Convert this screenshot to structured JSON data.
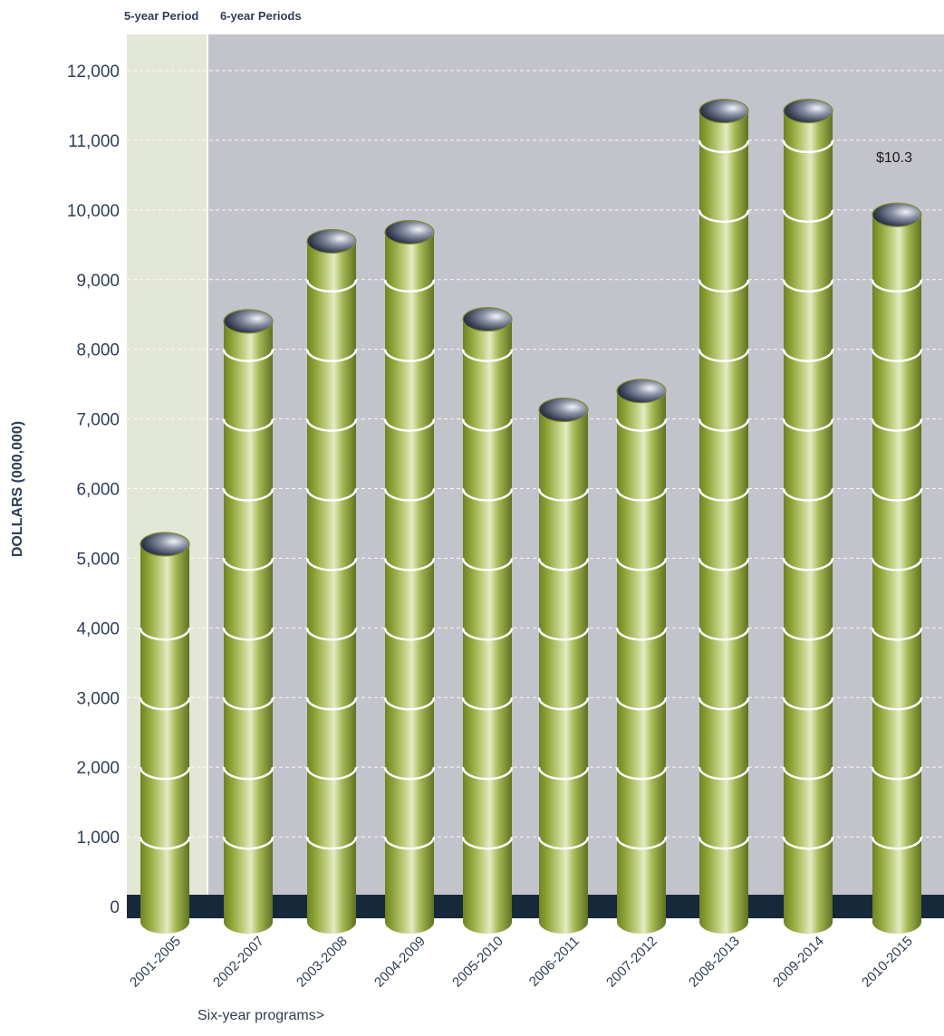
{
  "chart_data": {
    "type": "bar",
    "title": "",
    "ylabel": "DOLLARS (000,000)",
    "xlabel": "Six-year programs>",
    "ylim": [
      0,
      12000
    ],
    "yticks": [
      0,
      1000,
      2000,
      3000,
      4000,
      5000,
      6000,
      7000,
      8000,
      9000,
      10000,
      11000,
      12000
    ],
    "ytick_labels": [
      "0",
      "1,000",
      "2,000",
      "3,000",
      "4,000",
      "5,000",
      "6,000",
      "7,000",
      "8,000",
      "9,000",
      "10,000",
      "11,000",
      "12,000"
    ],
    "grid": true,
    "categories": [
      "2001-2005",
      "2002-2007",
      "2003-2008",
      "2004-2009",
      "2005-2010",
      "2006-2011",
      "2007-2012",
      "2008-2013",
      "2009-2014",
      "2010-2015"
    ],
    "values": [
      5200,
      8400,
      9550,
      9680,
      8430,
      7130,
      7400,
      11420,
      11420,
      9930
    ],
    "period_labels": [
      "5-year Period",
      "6-year Periods"
    ],
    "annotation": "$10.3",
    "colors": {
      "plot_background": "#c3c3cb",
      "five_year_background": "#e3e7d5",
      "base_band": "#16293a",
      "cylinder": "#95aa3c",
      "cylinder_top": "#2d3242",
      "ring": "#ffffff"
    }
  }
}
